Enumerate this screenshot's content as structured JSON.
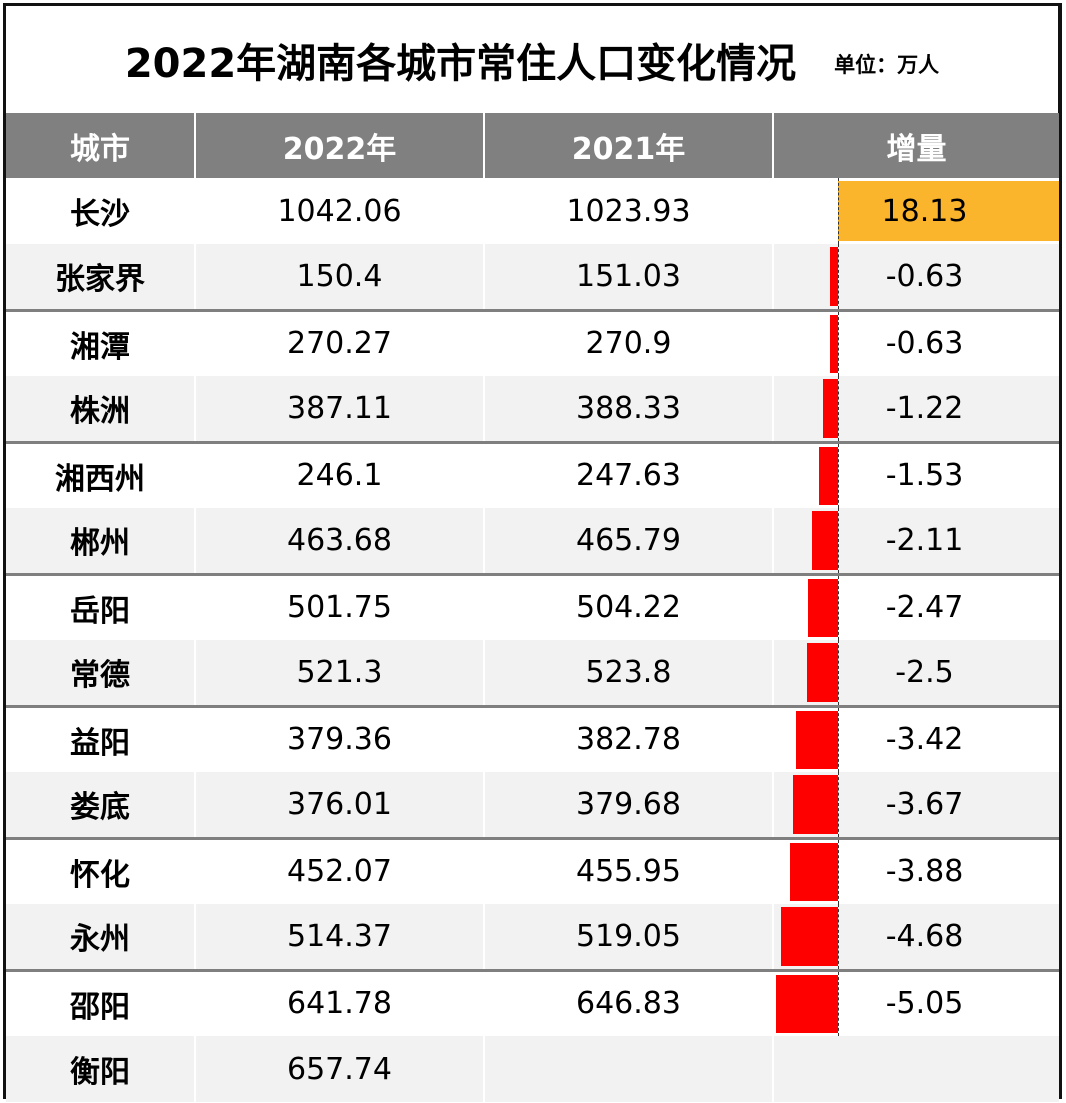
{
  "title": "2022年湖南各城市常住人口变化情况",
  "unit": "单位：万人",
  "headers": [
    "城市",
    "2022年",
    "2021年",
    "增量"
  ],
  "colors": {
    "header_bg": "#808080",
    "positive_bar": "#fbb52d",
    "negative_bar": "#ff0000",
    "stripe": "#f2f2f2"
  },
  "rows": [
    {
      "city": "长沙",
      "y2022": "1042.06",
      "y2021": "1023.93",
      "delta": "18.13"
    },
    {
      "city": "张家界",
      "y2022": "150.4",
      "y2021": "151.03",
      "delta": "-0.63"
    },
    {
      "city": "湘潭",
      "y2022": "270.27",
      "y2021": "270.9",
      "delta": "-0.63"
    },
    {
      "city": "株洲",
      "y2022": "387.11",
      "y2021": "388.33",
      "delta": "-1.22"
    },
    {
      "city": "湘西州",
      "y2022": "246.1",
      "y2021": "247.63",
      "delta": "-1.53"
    },
    {
      "city": "郴州",
      "y2022": "463.68",
      "y2021": "465.79",
      "delta": "-2.11"
    },
    {
      "city": "岳阳",
      "y2022": "501.75",
      "y2021": "504.22",
      "delta": "-2.47"
    },
    {
      "city": "常德",
      "y2022": "521.3",
      "y2021": "523.8",
      "delta": "-2.5"
    },
    {
      "city": "益阳",
      "y2022": "379.36",
      "y2021": "382.78",
      "delta": "-3.42"
    },
    {
      "city": "娄底",
      "y2022": "376.01",
      "y2021": "379.68",
      "delta": "-3.67"
    },
    {
      "city": "怀化",
      "y2022": "452.07",
      "y2021": "455.95",
      "delta": "-3.88"
    },
    {
      "city": "永州",
      "y2022": "514.37",
      "y2021": "519.05",
      "delta": "-4.68"
    },
    {
      "city": "邵阳",
      "y2022": "641.78",
      "y2021": "646.83",
      "delta": "-5.05"
    },
    {
      "city": "衡阳",
      "y2022": "657.74",
      "y2021": "",
      "delta": ""
    }
  ],
  "chart_data": {
    "type": "table",
    "title": "2022年湖南各城市常住人口变化情况",
    "subtitle": "单位：万人",
    "columns": [
      "城市",
      "2022年",
      "2021年",
      "增量"
    ],
    "categories": [
      "长沙",
      "张家界",
      "湘潭",
      "株洲",
      "湘西州",
      "郴州",
      "岳阳",
      "常德",
      "益阳",
      "娄底",
      "怀化",
      "永州",
      "邵阳",
      "衡阳"
    ],
    "series": [
      {
        "name": "2022年",
        "values": [
          1042.06,
          150.4,
          270.27,
          387.11,
          246.1,
          463.68,
          501.75,
          521.3,
          379.36,
          376.01,
          452.07,
          514.37,
          641.78,
          657.74
        ]
      },
      {
        "name": "2021年",
        "values": [
          1023.93,
          151.03,
          270.9,
          388.33,
          247.63,
          465.79,
          504.22,
          523.8,
          382.78,
          379.68,
          455.95,
          519.05,
          646.83,
          null
        ]
      },
      {
        "name": "增量",
        "values": [
          18.13,
          -0.63,
          -0.63,
          -1.22,
          -1.53,
          -2.11,
          -2.47,
          -2.5,
          -3.42,
          -3.67,
          -3.88,
          -4.68,
          -5.05,
          null
        ]
      }
    ],
    "data_bars": {
      "column": "增量",
      "positive_color": "#fbb52d",
      "negative_color": "#ff0000"
    }
  }
}
